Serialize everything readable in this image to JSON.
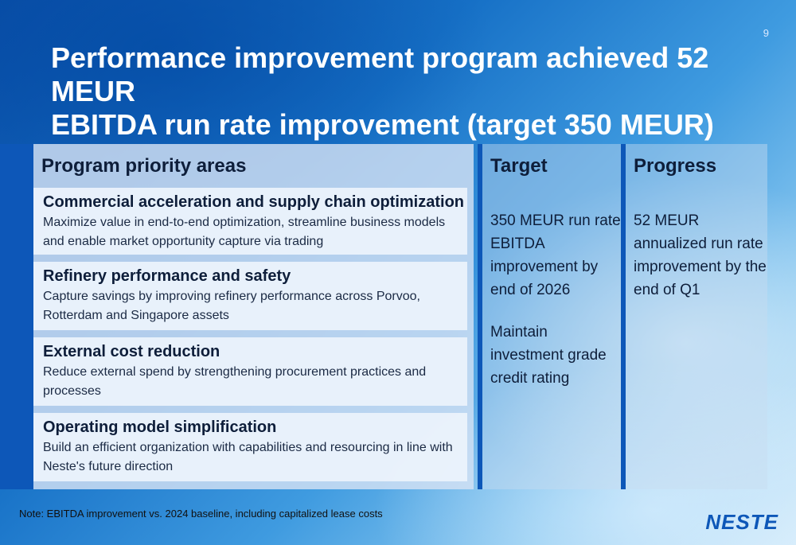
{
  "page_number": "9",
  "title": {
    "line1": "Performance improvement program achieved 52 MEUR",
    "line2": "EBITDA run rate improvement (target 350 MEUR)"
  },
  "priority": {
    "heading": "Program priority areas",
    "areas": [
      {
        "title": "Commercial acceleration and supply chain optimization",
        "text": "Maximize value in end-to-end optimization, streamline business models and enable market opportunity capture via trading"
      },
      {
        "title": "Refinery performance and safety",
        "text": "Capture savings by improving refinery performance across Porvoo, Rotterdam and Singapore assets"
      },
      {
        "title": "External cost reduction",
        "text": "Reduce external spend by strengthening procurement practices and processes"
      },
      {
        "title": "Operating model simplification",
        "text": "Build an efficient organization with capabilities and resourcing in line with Neste's future direction"
      }
    ]
  },
  "target": {
    "heading": "Target",
    "item1": "350 MEUR run rate EBITDA improvement by end of 2026",
    "item2": "Maintain investment grade credit rating"
  },
  "progress": {
    "heading": "Progress",
    "item1": "52 MEUR annualized run rate improvement by the end of Q1"
  },
  "note": "Note: EBITDA improvement vs. 2024 baseline, including capitalized lease costs",
  "logo_text": "NESTE",
  "colors": {
    "accent": "#0d57b8",
    "title_text": "#ffffff",
    "body_text": "#0e1e3a"
  }
}
